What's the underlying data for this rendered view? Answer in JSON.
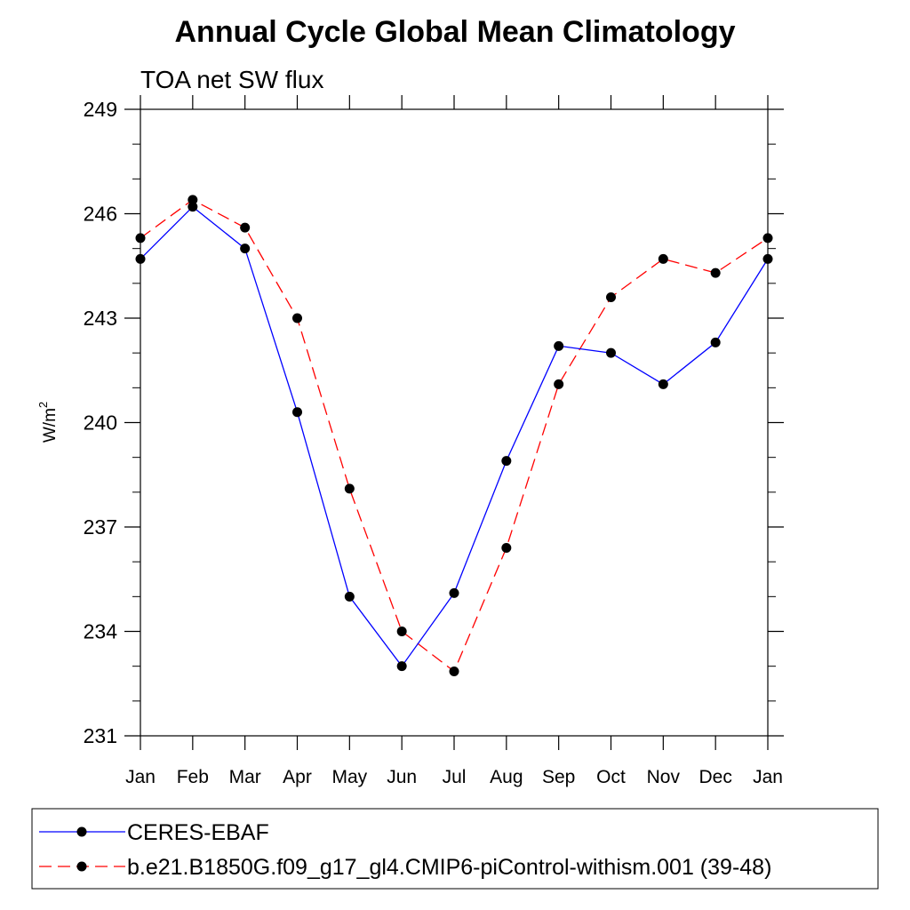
{
  "chart_data": {
    "type": "line",
    "title": "Annual Cycle Global Mean Climatology",
    "subtitle": "TOA net SW flux",
    "ylabel": "W/m",
    "ylabel_superscript": "2",
    "xlabel": "",
    "categories": [
      "Jan",
      "Feb",
      "Mar",
      "Apr",
      "May",
      "Jun",
      "Jul",
      "Aug",
      "Sep",
      "Oct",
      "Nov",
      "Dec",
      "Jan"
    ],
    "ylim": [
      231,
      249
    ],
    "yticks": [
      231,
      234,
      237,
      240,
      243,
      246,
      249
    ],
    "series": [
      {
        "name": "CERES-EBAF",
        "color": "#0000ff",
        "style": "solid",
        "marker": "filled-circle",
        "values": [
          244.7,
          246.2,
          245.0,
          240.3,
          235.0,
          233.0,
          235.1,
          238.9,
          242.2,
          242.0,
          241.1,
          242.3,
          244.7
        ]
      },
      {
        "name": "b.e21.B1850G.f09_g17_gl4.CMIP6-piControl-withism.001 (39-48)",
        "color": "#ff0000",
        "style": "dashed",
        "marker": "filled-circle",
        "values": [
          245.3,
          246.4,
          245.6,
          243.0,
          238.1,
          234.0,
          232.85,
          236.4,
          241.1,
          243.6,
          244.7,
          244.3,
          245.3
        ]
      }
    ],
    "grid": false,
    "legend_position": "bottom"
  }
}
